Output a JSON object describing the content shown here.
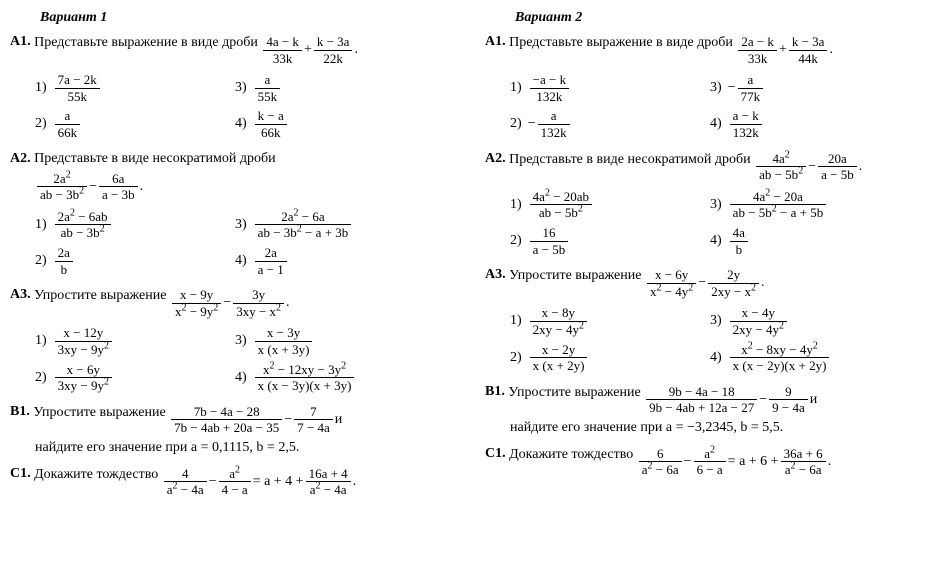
{
  "variants": [
    {
      "title": "Вариант 1",
      "problems": [
        {
          "label": "А1.",
          "text_before": "Представьте выражение в виде дроби ",
          "expr": [
            {
              "type": "frac",
              "num": "4a − k",
              "den": "33k"
            },
            " + ",
            {
              "type": "frac",
              "num": "k − 3a",
              "den": "22k"
            },
            " ."
          ],
          "answers": [
            {
              "num": "1)",
              "expr": [
                {
                  "type": "frac",
                  "num": "7a − 2k",
                  "den": "55k"
                }
              ]
            },
            {
              "num": "3)",
              "expr": [
                {
                  "type": "frac",
                  "num": "a",
                  "den": "55k"
                }
              ]
            },
            {
              "num": "2)",
              "expr": [
                {
                  "type": "frac",
                  "num": "a",
                  "den": "66k"
                }
              ]
            },
            {
              "num": "4)",
              "expr": [
                {
                  "type": "frac",
                  "num": "k − a",
                  "den": "66k"
                }
              ]
            }
          ]
        },
        {
          "label": "А2.",
          "text_before": "Представьте в виде несократимой дроби",
          "expr_below": [
            {
              "type": "frac",
              "num": "2a²",
              "den": "ab − 3b²"
            },
            " − ",
            {
              "type": "frac",
              "num": "6a",
              "den": "a − 3b"
            },
            " ."
          ],
          "answers": [
            {
              "num": "1)",
              "expr": [
                {
                  "type": "frac",
                  "num": "2a² − 6ab",
                  "den": "ab − 3b²"
                }
              ]
            },
            {
              "num": "3)",
              "expr": [
                {
                  "type": "frac",
                  "num": "2a² − 6a",
                  "den": "ab − 3b² − a + 3b"
                }
              ]
            },
            {
              "num": "2)",
              "expr": [
                {
                  "type": "frac",
                  "num": "2a",
                  "den": "b"
                }
              ]
            },
            {
              "num": "4)",
              "expr": [
                {
                  "type": "frac",
                  "num": "2a",
                  "den": "a − 1"
                }
              ]
            }
          ]
        },
        {
          "label": "А3.",
          "text_before": "Упростите выражение ",
          "expr": [
            {
              "type": "frac",
              "num": "x − 9y",
              "den": "x² − 9y²"
            },
            " − ",
            {
              "type": "frac",
              "num": "3y",
              "den": "3xy − x²"
            },
            " ."
          ],
          "answers": [
            {
              "num": "1)",
              "expr": [
                {
                  "type": "frac",
                  "num": "x − 12y",
                  "den": "3xy − 9y²"
                }
              ]
            },
            {
              "num": "3)",
              "expr": [
                {
                  "type": "frac",
                  "num": "x − 3y",
                  "den": "x (x + 3y)"
                }
              ]
            },
            {
              "num": "2)",
              "expr": [
                {
                  "type": "frac",
                  "num": "x − 6y",
                  "den": "3xy − 9y²"
                }
              ]
            },
            {
              "num": "4)",
              "expr": [
                {
                  "type": "frac",
                  "num": "x² − 12xy − 3y²",
                  "den": "x (x − 3y)(x + 3y)"
                }
              ]
            }
          ]
        },
        {
          "label": "В1.",
          "text_before": "Упростите выражение ",
          "expr": [
            {
              "type": "frac",
              "num": "7b − 4a − 28",
              "den": "7b − 4ab + 20a − 35"
            },
            " − ",
            {
              "type": "frac",
              "num": "7",
              "den": "7 − 4a"
            },
            "  и"
          ],
          "text_after": "найдите его значение при  a = 0,1115,  b = 2,5."
        },
        {
          "label": "С1.",
          "text_before": "Докажите тождество ",
          "expr": [
            {
              "type": "frac",
              "num": "4",
              "den": "a² − 4a"
            },
            " − ",
            {
              "type": "frac",
              "num": "a²",
              "den": "4 − a"
            },
            " = a + 4 + ",
            {
              "type": "frac",
              "num": "16a + 4",
              "den": "a² − 4a"
            },
            " ."
          ]
        }
      ]
    },
    {
      "title": "Вариант 2",
      "problems": [
        {
          "label": "А1.",
          "text_before": "Представьте выражение в виде дроби ",
          "expr": [
            {
              "type": "frac",
              "num": "2a − k",
              "den": "33k"
            },
            " + ",
            {
              "type": "frac",
              "num": "k − 3a",
              "den": "44k"
            },
            " ."
          ],
          "answers": [
            {
              "num": "1)",
              "expr": [
                {
                  "type": "frac",
                  "num": "−a − k",
                  "den": "132k"
                }
              ]
            },
            {
              "num": "3)",
              "expr": [
                " − ",
                {
                  "type": "frac",
                  "num": "a",
                  "den": "77k"
                }
              ]
            },
            {
              "num": "2)",
              "expr": [
                " − ",
                {
                  "type": "frac",
                  "num": "a",
                  "den": "132k"
                }
              ]
            },
            {
              "num": "4)",
              "expr": [
                {
                  "type": "frac",
                  "num": "a − k",
                  "den": "132k"
                }
              ]
            }
          ]
        },
        {
          "label": "А2.",
          "text_before": "Представьте в виде несократимой дроби ",
          "expr": [
            {
              "type": "frac",
              "num": "4a²",
              "den": "ab − 5b²"
            },
            " − ",
            {
              "type": "frac",
              "num": "20a",
              "den": "a − 5b"
            },
            " ."
          ],
          "answers": [
            {
              "num": "1)",
              "expr": [
                {
                  "type": "frac",
                  "num": "4a² − 20ab",
                  "den": "ab − 5b²"
                }
              ]
            },
            {
              "num": "3)",
              "expr": [
                {
                  "type": "frac",
                  "num": "4a² − 20a",
                  "den": "ab − 5b² − a + 5b"
                }
              ]
            },
            {
              "num": "2)",
              "expr": [
                {
                  "type": "frac",
                  "num": "16",
                  "den": "a − 5b"
                }
              ]
            },
            {
              "num": "4)",
              "expr": [
                {
                  "type": "frac",
                  "num": "4a",
                  "den": "b"
                }
              ]
            }
          ]
        },
        {
          "label": "А3.",
          "text_before": "Упростите выражение ",
          "expr": [
            {
              "type": "frac",
              "num": "x − 6y",
              "den": "x² − 4y²"
            },
            " − ",
            {
              "type": "frac",
              "num": "2y",
              "den": "2xy − x²"
            },
            " ."
          ],
          "answers": [
            {
              "num": "1)",
              "expr": [
                {
                  "type": "frac",
                  "num": "x − 8y",
                  "den": "2xy − 4y²"
                }
              ]
            },
            {
              "num": "3)",
              "expr": [
                {
                  "type": "frac",
                  "num": "x − 4y",
                  "den": "2xy − 4y²"
                }
              ]
            },
            {
              "num": "2)",
              "expr": [
                {
                  "type": "frac",
                  "num": "x − 2y",
                  "den": "x (x + 2y)"
                }
              ]
            },
            {
              "num": "4)",
              "expr": [
                {
                  "type": "frac",
                  "num": "x² − 8xy − 4y²",
                  "den": "x (x − 2y)(x + 2y)"
                }
              ]
            }
          ]
        },
        {
          "label": "В1.",
          "text_before": "Упростите  выражение  ",
          "expr": [
            {
              "type": "frac",
              "num": "9b − 4a − 18",
              "den": "9b − 4ab + 12a − 27"
            },
            " − ",
            {
              "type": "frac",
              "num": "9",
              "den": "9 − 4a"
            },
            "    и"
          ],
          "text_after": "найдите его значение при  a = −3,2345,  b = 5,5."
        },
        {
          "label": "С1.",
          "text_before": "Докажите тождество ",
          "expr": [
            {
              "type": "frac",
              "num": "6",
              "den": "a² − 6a"
            },
            " − ",
            {
              "type": "frac",
              "num": "a²",
              "den": "6 − a"
            },
            " = a + 6 + ",
            {
              "type": "frac",
              "num": "36a + 6",
              "den": "a² − 6a"
            },
            " ."
          ]
        }
      ]
    }
  ],
  "style": {
    "background_color": "#ffffff",
    "text_color": "#000000",
    "font_family": "Times New Roman",
    "font_size_pt": 11,
    "title_weight": "bold",
    "title_style": "italic"
  }
}
